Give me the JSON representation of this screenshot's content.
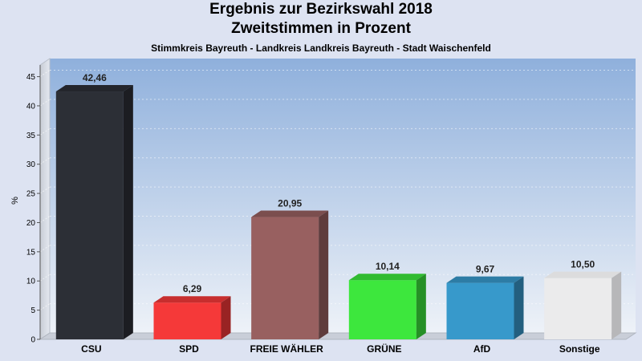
{
  "title_line1": "Ergebnis zur Bezirkswahl 2018",
  "title_line2": "Zweitstimmen in Prozent",
  "subtitle": "Stimmkreis Bayreuth - Landkreis Landkreis Bayreuth - Stadt Waischenfeld",
  "colors": {
    "background": "#dde3f2",
    "plot_gradient_top": "#8fb0dc",
    "plot_gradient_bottom": "#eef2f8"
  },
  "chart_data": {
    "type": "bar",
    "title": "Ergebnis zur Bezirkswahl 2018",
    "subtitle": "Zweitstimmen in Prozent",
    "ylabel": "%",
    "xlabel": "",
    "ylim": [
      0,
      47
    ],
    "yticks": [
      0,
      5,
      10,
      15,
      20,
      25,
      30,
      35,
      40,
      45
    ],
    "grid": true,
    "categories": [
      "CSU",
      "SPD",
      "FREIE WÄHLER",
      "GRÜNE",
      "AfD",
      "Sonstige"
    ],
    "values": [
      42.46,
      6.29,
      20.95,
      10.14,
      9.67,
      10.5
    ],
    "value_labels": [
      "42,46",
      "6,29",
      "20,95",
      "10,14",
      "9,67",
      "10,50"
    ],
    "colors": [
      "#2e3138",
      "#ff3b3b",
      "#9e6464",
      "#3ff03f",
      "#3a9fd3",
      "#f4f4f6"
    ]
  }
}
